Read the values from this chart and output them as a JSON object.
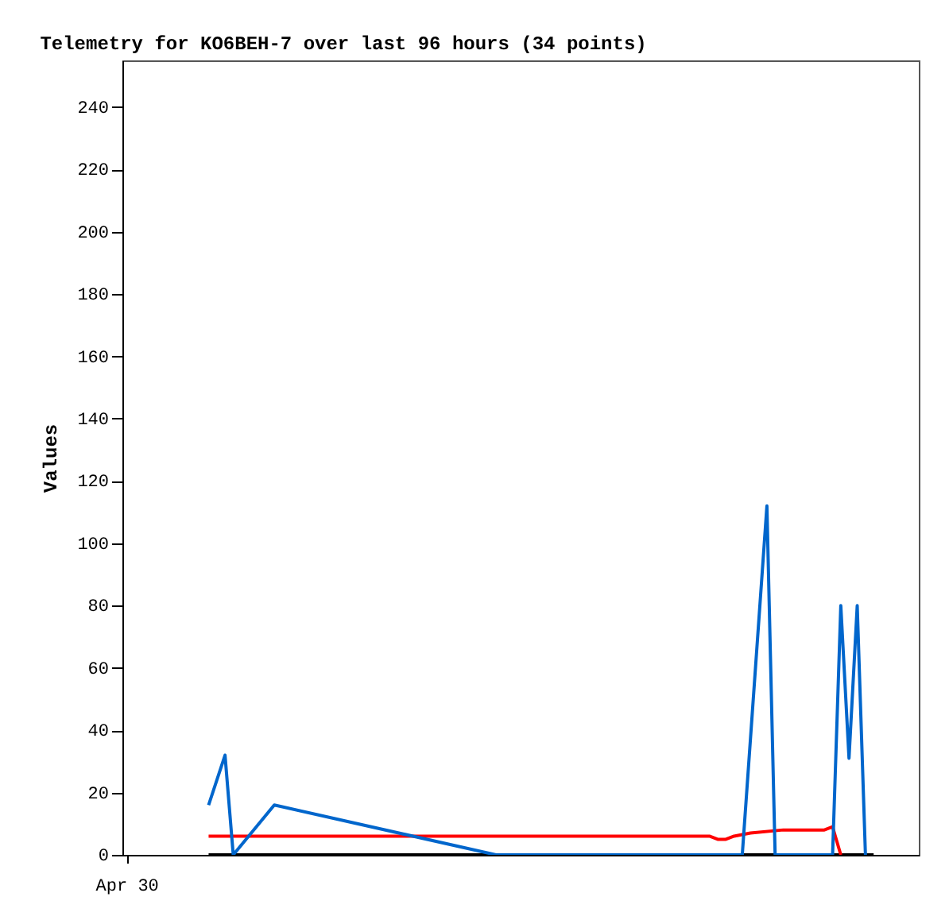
{
  "chart_data": {
    "type": "line",
    "title": "Telemetry for KO6BEH-7 over last 96 hours (34 points)",
    "ylabel": "Values",
    "categories": [
      "Apr 30",
      null,
      null,
      null,
      null,
      null,
      null,
      null,
      null,
      null,
      null,
      null,
      null,
      null,
      null,
      null,
      null,
      null,
      null,
      null,
      null,
      null,
      null,
      null,
      null,
      null,
      null,
      null,
      null,
      null,
      null,
      null,
      null,
      null,
      null,
      null,
      null,
      null,
      null,
      null,
      null,
      null,
      null,
      null,
      null,
      null,
      null,
      null,
      null,
      null,
      null,
      null,
      null,
      null,
      null,
      null,
      null,
      null,
      null,
      null,
      null,
      null,
      null,
      null,
      null,
      null,
      null,
      null,
      null,
      null,
      null,
      null,
      null,
      null,
      null,
      null,
      null,
      null,
      null,
      null,
      null,
      null,
      null,
      null,
      null,
      null,
      null,
      null,
      null,
      null,
      null,
      null,
      null,
      null,
      null,
      null,
      null
    ],
    "ylim": [
      0,
      255
    ],
    "yticks": [
      0,
      20,
      40,
      60,
      80,
      100,
      120,
      140,
      160,
      180,
      200,
      220,
      240
    ],
    "series": [
      {
        "color": "#000000",
        "values": [
          null,
          null,
          null,
          null,
          null,
          null,
          null,
          null,
          null,
          null,
          0,
          null,
          null,
          null,
          null,
          null,
          null,
          null,
          null,
          null,
          null,
          null,
          null,
          null,
          null,
          null,
          null,
          null,
          null,
          null,
          null,
          null,
          null,
          null,
          null,
          null,
          null,
          null,
          null,
          null,
          null,
          null,
          null,
          null,
          null,
          null,
          null,
          null,
          null,
          null,
          null,
          null,
          null,
          null,
          null,
          null,
          null,
          null,
          null,
          null,
          null,
          null,
          null,
          null,
          null,
          null,
          null,
          null,
          null,
          null,
          null,
          null,
          null,
          null,
          null,
          null,
          null,
          null,
          null,
          null,
          null,
          null,
          null,
          null,
          null,
          null,
          null,
          null,
          null,
          null,
          null,
          0,
          null,
          null,
          null,
          null,
          null
        ]
      },
      {
        "color": "#ff0000",
        "values": [
          null,
          null,
          null,
          null,
          null,
          null,
          null,
          null,
          null,
          null,
          6,
          null,
          null,
          null,
          null,
          null,
          null,
          null,
          null,
          null,
          null,
          null,
          null,
          null,
          null,
          null,
          null,
          null,
          null,
          null,
          null,
          null,
          null,
          null,
          null,
          null,
          null,
          null,
          null,
          null,
          null,
          null,
          null,
          null,
          null,
          null,
          null,
          null,
          null,
          null,
          null,
          null,
          null,
          null,
          null,
          null,
          null,
          null,
          null,
          null,
          null,
          null,
          null,
          null,
          null,
          null,
          null,
          null,
          null,
          null,
          null,
          6,
          5,
          5,
          6,
          null,
          7,
          null,
          null,
          null,
          8,
          null,
          null,
          null,
          null,
          8,
          9,
          0,
          null,
          null,
          null,
          null,
          null,
          null,
          null,
          null,
          null
        ]
      },
      {
        "color": "#0066cc",
        "values": [
          null,
          null,
          null,
          null,
          null,
          null,
          null,
          null,
          null,
          null,
          16,
          null,
          32,
          0,
          null,
          null,
          null,
          null,
          16,
          null,
          null,
          null,
          null,
          null,
          null,
          null,
          null,
          null,
          null,
          null,
          null,
          null,
          null,
          null,
          null,
          null,
          null,
          null,
          null,
          null,
          null,
          null,
          null,
          null,
          null,
          0,
          null,
          null,
          null,
          null,
          null,
          null,
          null,
          null,
          null,
          null,
          null,
          null,
          null,
          null,
          null,
          null,
          null,
          null,
          null,
          null,
          null,
          null,
          null,
          null,
          null,
          null,
          null,
          null,
          null,
          0,
          null,
          null,
          112,
          0,
          null,
          null,
          null,
          null,
          null,
          null,
          0,
          80,
          31,
          80,
          0,
          null,
          null,
          null,
          null,
          null,
          null
        ]
      }
    ]
  }
}
